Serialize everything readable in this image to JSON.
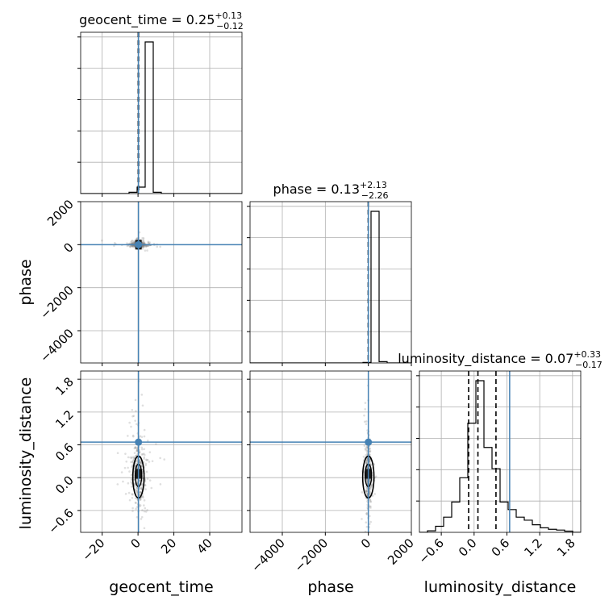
{
  "chart_data": {
    "type": "corner",
    "parameters": [
      "geocent_time",
      "phase",
      "luminosity_distance"
    ],
    "colors": {
      "truth": "#4682b4",
      "hist": "#000000",
      "grid": "#b0b0b0",
      "scatter": "#808080"
    },
    "titles": [
      {
        "name": "geocent_time",
        "median": "0.25",
        "plus": "+0.13",
        "minus": "−0.12"
      },
      {
        "name": "phase",
        "median": "0.13",
        "plus": "+2.13",
        "minus": "−2.26"
      },
      {
        "name": "luminosity_distance",
        "median": "0.07",
        "plus": "+0.33",
        "minus": "−0.17"
      }
    ],
    "axes": {
      "geocent_time": {
        "range": [
          -32,
          58
        ],
        "ticks": [
          -20,
          0,
          20,
          40
        ],
        "tick_labels": [
          "−20",
          "0",
          "20",
          "40"
        ]
      },
      "phase": {
        "range": [
          -5500,
          2000
        ],
        "ticks": [
          -4000,
          -2000,
          0,
          2000
        ],
        "tick_labels": [
          "−4000",
          "−2000",
          "0",
          "2000"
        ]
      },
      "luminosity_distance": {
        "range": [
          -1.0,
          1.95
        ],
        "ticks": [
          -0.6,
          0.0,
          0.6,
          1.2,
          1.8
        ],
        "tick_labels": [
          "−0.6",
          "0.0",
          "0.6",
          "1.2",
          "1.8"
        ]
      }
    },
    "truths": {
      "geocent_time": 0.25,
      "phase": 0.0,
      "luminosity_distance": 0.65
    },
    "quantiles": {
      "geocent_time": [
        0.13,
        0.25,
        0.38
      ],
      "phase": [
        -2.13,
        0.13,
        2.26
      ],
      "luminosity_distance": [
        -0.1,
        0.07,
        0.4
      ]
    },
    "histograms": {
      "geocent_time": {
        "edges": [
          -32,
          -27.5,
          -23,
          -18.5,
          -14,
          -9.5,
          -5,
          -0.5,
          4,
          8.5,
          13,
          17.5,
          22,
          26.5,
          31,
          35.5,
          40,
          44.5,
          49,
          53.5,
          58
        ],
        "counts": [
          0,
          0,
          0,
          0,
          0,
          0,
          0.008,
          0.04,
          0.94,
          0.008,
          0,
          0,
          0,
          0,
          0,
          0,
          0,
          0,
          0,
          0
        ]
      },
      "phase": {
        "edges": [
          -5500,
          -5125,
          -4750,
          -4375,
          -4000,
          -3625,
          -3250,
          -2875,
          -2500,
          -2125,
          -1750,
          -1375,
          -1000,
          -625,
          -250,
          125,
          500,
          875,
          1250,
          1625,
          2000
        ],
        "counts": [
          0,
          0,
          0,
          0,
          0,
          0,
          0,
          0,
          0,
          0,
          0,
          0,
          0,
          0,
          0.003,
          0.94,
          0.008,
          0,
          0,
          0
        ]
      },
      "luminosity_distance": {
        "edges": [
          -1.0,
          -0.8525,
          -0.705,
          -0.5575,
          -0.41,
          -0.2625,
          -0.115,
          0.0325,
          0.18,
          0.3275,
          0.475,
          0.6225,
          0.77,
          0.9175,
          1.065,
          1.2125,
          1.36,
          1.5075,
          1.655,
          1.8025,
          1.95
        ],
        "counts": [
          0,
          0.01,
          0.04,
          0.1,
          0.2,
          0.36,
          0.72,
          1.0,
          0.56,
          0.42,
          0.2,
          0.15,
          0.1,
          0.08,
          0.05,
          0.03,
          0.02,
          0.015,
          0.008,
          0
        ]
      }
    },
    "ylabels": [
      "phase",
      "luminosity_distance"
    ],
    "xlabels": [
      "geocent_time",
      "phase",
      "luminosity_distance"
    ]
  }
}
